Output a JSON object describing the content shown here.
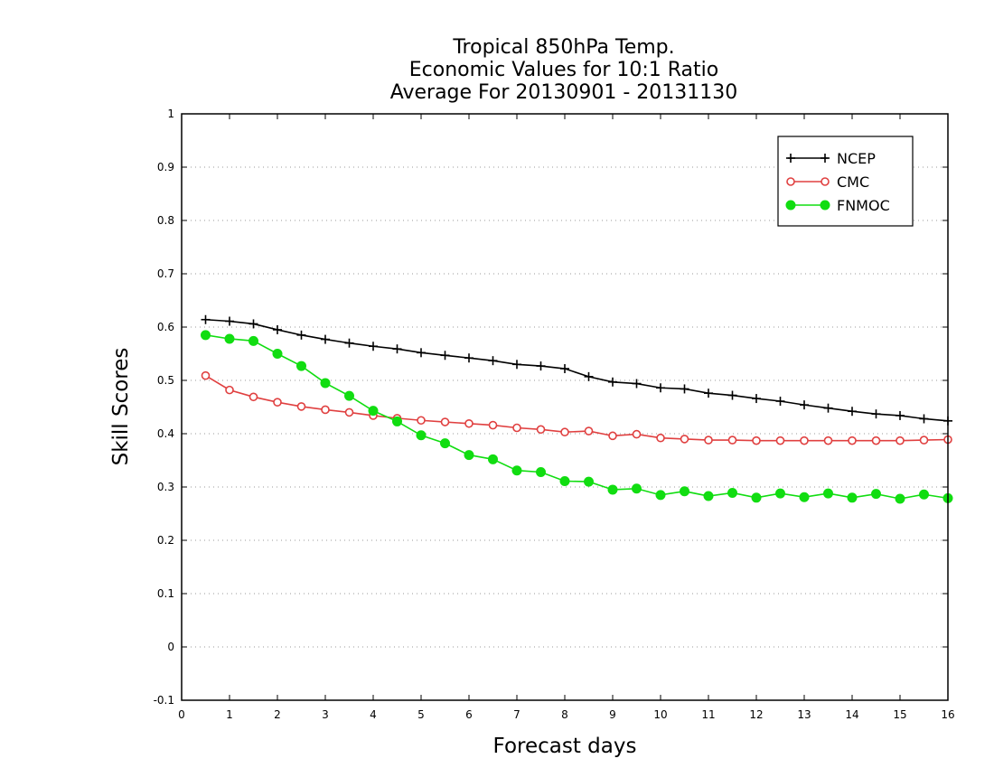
{
  "chart_data": {
    "type": "line",
    "title": [
      "Tropical 850hPa Temp.",
      "Economic Values for 10:1 Ratio",
      "Average For 20130901 - 20131130"
    ],
    "xlabel": "Forecast days",
    "ylabel": "Skill Scores",
    "xlim": [
      0,
      16
    ],
    "ylim": [
      -0.1,
      1
    ],
    "xticks": [
      "0",
      "1",
      "2",
      "3",
      "4",
      "5",
      "6",
      "7",
      "8",
      "9",
      "10",
      "11",
      "12",
      "13",
      "14",
      "15",
      "16"
    ],
    "yticks": [
      "-0.1",
      "0",
      "0.1",
      "0.2",
      "0.3",
      "0.4",
      "0.5",
      "0.6",
      "0.7",
      "0.8",
      "0.9",
      "1"
    ],
    "grid": "horizontal dotted",
    "legend_position": "top-right",
    "x": [
      0.5,
      1,
      1.5,
      2,
      2.5,
      3,
      3.5,
      4,
      4.5,
      5,
      5.5,
      6,
      6.5,
      7,
      7.5,
      8,
      8.5,
      9,
      9.5,
      10,
      10.5,
      11,
      11.5,
      12,
      12.5,
      13,
      13.5,
      14,
      14.5,
      15,
      15.5,
      16
    ],
    "series": [
      {
        "name": "NCEP",
        "color": "#000000",
        "marker": "plus",
        "values": [
          0.614,
          0.611,
          0.606,
          0.595,
          0.585,
          0.577,
          0.57,
          0.564,
          0.559,
          0.552,
          0.547,
          0.542,
          0.537,
          0.53,
          0.527,
          0.522,
          0.507,
          0.497,
          0.494,
          0.486,
          0.484,
          0.476,
          0.472,
          0.466,
          0.461,
          0.454,
          0.448,
          0.442,
          0.437,
          0.434,
          0.428,
          0.424
        ]
      },
      {
        "name": "CMC",
        "color": "#e04040",
        "marker": "open-circle",
        "values": [
          0.509,
          0.482,
          0.469,
          0.459,
          0.451,
          0.445,
          0.44,
          0.434,
          0.429,
          0.425,
          0.422,
          0.419,
          0.416,
          0.411,
          0.408,
          0.403,
          0.405,
          0.396,
          0.399,
          0.392,
          0.39,
          0.388,
          0.388,
          0.387,
          0.387,
          0.387,
          0.387,
          0.387,
          0.387,
          0.387,
          0.388,
          0.389
        ]
      },
      {
        "name": "FNMOC",
        "color": "#11dd11",
        "marker": "filled-circle",
        "values": [
          0.585,
          0.578,
          0.574,
          0.55,
          0.527,
          0.495,
          0.471,
          0.443,
          0.423,
          0.397,
          0.382,
          0.36,
          0.352,
          0.331,
          0.328,
          0.311,
          0.31,
          0.295,
          0.297,
          0.285,
          0.292,
          0.283,
          0.289,
          0.28,
          0.288,
          0.281,
          0.288,
          0.28,
          0.287,
          0.278,
          0.286,
          0.279
        ]
      }
    ]
  }
}
